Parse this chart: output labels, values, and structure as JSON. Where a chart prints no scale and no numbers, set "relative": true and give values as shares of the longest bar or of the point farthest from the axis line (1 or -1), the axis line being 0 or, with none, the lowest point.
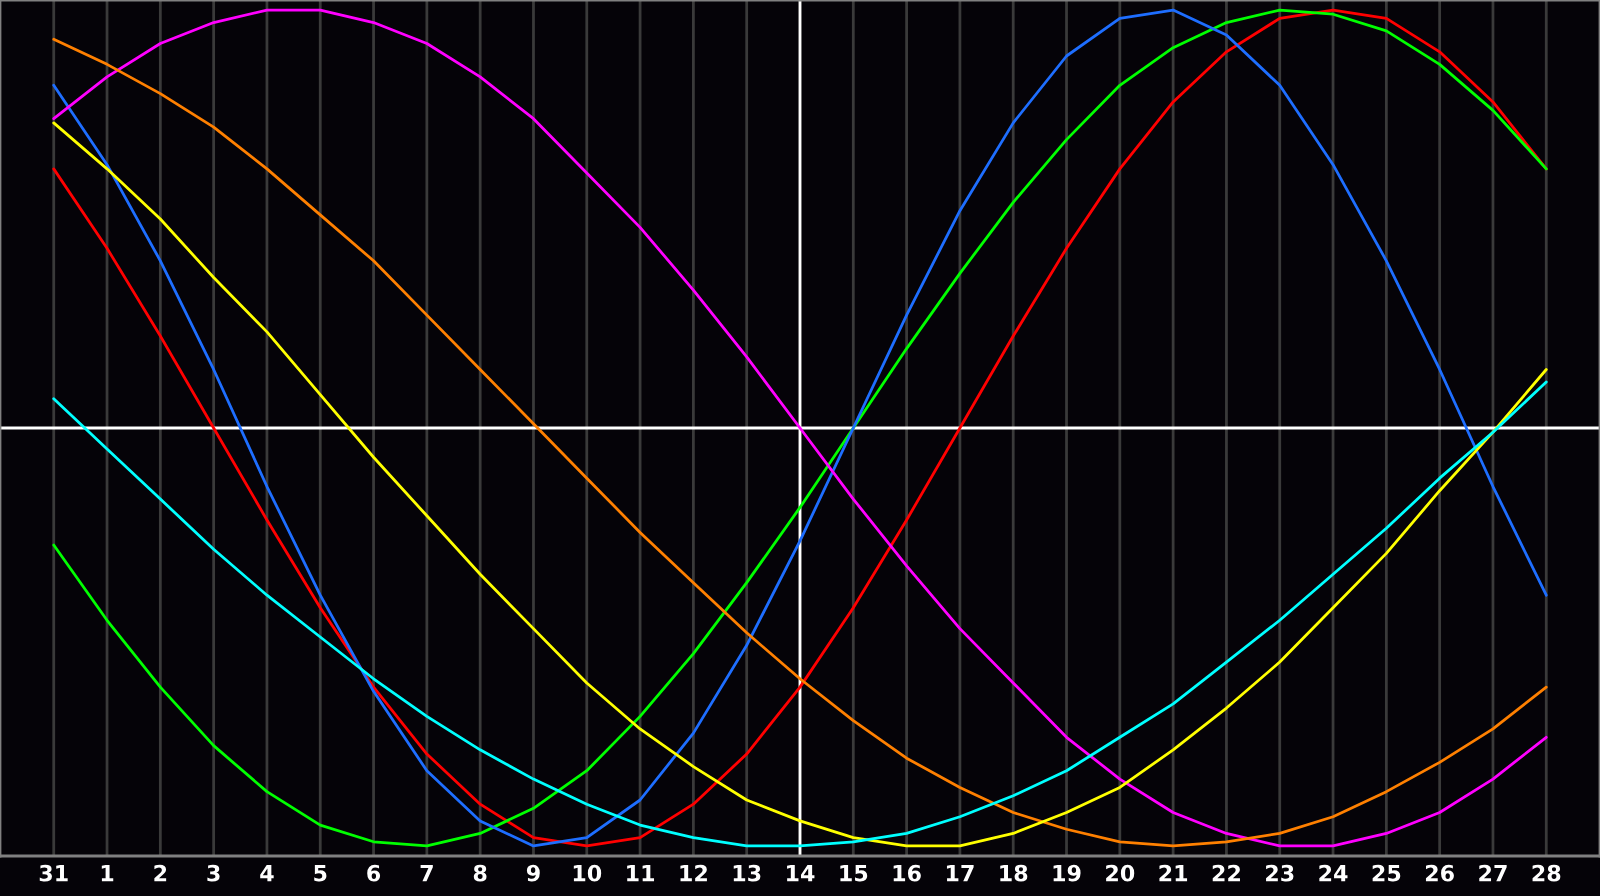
{
  "chart_data": {
    "type": "line",
    "relative": true,
    "grid": "x",
    "marker": "none",
    "line_style": "solid",
    "categories": [
      "31",
      "1",
      "2",
      "3",
      "4",
      "5",
      "6",
      "7",
      "8",
      "9",
      "10",
      "11",
      "12",
      "13",
      "14",
      "15",
      "16",
      "17",
      "18",
      "19",
      "20",
      "21",
      "22",
      "23",
      "24",
      "25",
      "26",
      "27",
      "28"
    ],
    "ref_lines": [
      {
        "axis": "x",
        "value": "14",
        "color": "#ffffff"
      }
    ],
    "series": [
      {
        "color": "#ff0000",
        "values": [
          0.62,
          0.43,
          0.22,
          0,
          -0.22,
          -0.43,
          -0.62,
          -0.78,
          -0.9,
          -0.98,
          -1,
          -0.98,
          -0.9,
          -0.78,
          -0.62,
          -0.43,
          -0.22,
          0,
          0.22,
          0.43,
          0.62,
          0.78,
          0.9,
          0.98,
          1,
          0.98,
          0.9,
          0.78,
          0.62
        ]
      },
      {
        "color": "#00ff00",
        "values": [
          -0.28,
          -0.46,
          -0.62,
          -0.76,
          -0.87,
          -0.95,
          -0.99,
          -1,
          -0.97,
          -0.91,
          -0.82,
          -0.69,
          -0.54,
          -0.37,
          -0.19,
          0,
          0.19,
          0.37,
          0.54,
          0.69,
          0.82,
          0.91,
          0.97,
          1,
          0.99,
          0.95,
          0.87,
          0.76,
          0.62
        ]
      },
      {
        "color": "#1e6eff",
        "values": [
          0.82,
          0.63,
          0.4,
          0.14,
          -0.14,
          -0.4,
          -0.63,
          -0.82,
          -0.94,
          -1,
          -0.98,
          -0.89,
          -0.73,
          -0.52,
          -0.27,
          0,
          0.27,
          0.52,
          0.73,
          0.89,
          0.98,
          1,
          0.94,
          0.82,
          0.63,
          0.4,
          0.14,
          -0.14,
          -0.4
        ]
      },
      {
        "color": "#ff00ff",
        "values": [
          0.74,
          0.84,
          0.92,
          0.97,
          1,
          1,
          0.97,
          0.92,
          0.84,
          0.74,
          0.61,
          0.48,
          0.33,
          0.17,
          0,
          -0.17,
          -0.33,
          -0.48,
          -0.61,
          -0.74,
          -0.84,
          -0.92,
          -0.97,
          -1,
          -1,
          -0.97,
          -0.92,
          -0.84,
          -0.74
        ]
      },
      {
        "color": "#ff8000",
        "values": [
          0.93,
          0.87,
          0.8,
          0.72,
          0.62,
          0.51,
          0.4,
          0.27,
          0.14,
          0.01,
          -0.12,
          -0.25,
          -0.37,
          -0.49,
          -0.6,
          -0.7,
          -0.79,
          -0.86,
          -0.92,
          -0.96,
          -0.99,
          -1,
          -0.99,
          -0.97,
          -0.93,
          -0.87,
          -0.8,
          -0.72,
          -0.62
        ]
      },
      {
        "color": "#ffff00",
        "values": [
          0.73,
          0.62,
          0.5,
          0.36,
          0.23,
          0.08,
          -0.07,
          -0.21,
          -0.35,
          -0.48,
          -0.61,
          -0.72,
          -0.81,
          -0.89,
          -0.94,
          -0.98,
          -1,
          -1,
          -0.97,
          -0.92,
          -0.86,
          -0.77,
          -0.67,
          -0.56,
          -0.43,
          -0.3,
          -0.15,
          -0.01,
          0.14
        ]
      },
      {
        "color": "#00ffff",
        "values": [
          0.07,
          -0.05,
          -0.17,
          -0.29,
          -0.4,
          -0.5,
          -0.6,
          -0.69,
          -0.77,
          -0.84,
          -0.9,
          -0.95,
          -0.98,
          -1,
          -1,
          -0.99,
          -0.97,
          -0.93,
          -0.88,
          -0.82,
          -0.74,
          -0.66,
          -0.56,
          -0.46,
          -0.35,
          -0.24,
          -0.12,
          -0.01,
          0.11
        ]
      }
    ]
  }
}
